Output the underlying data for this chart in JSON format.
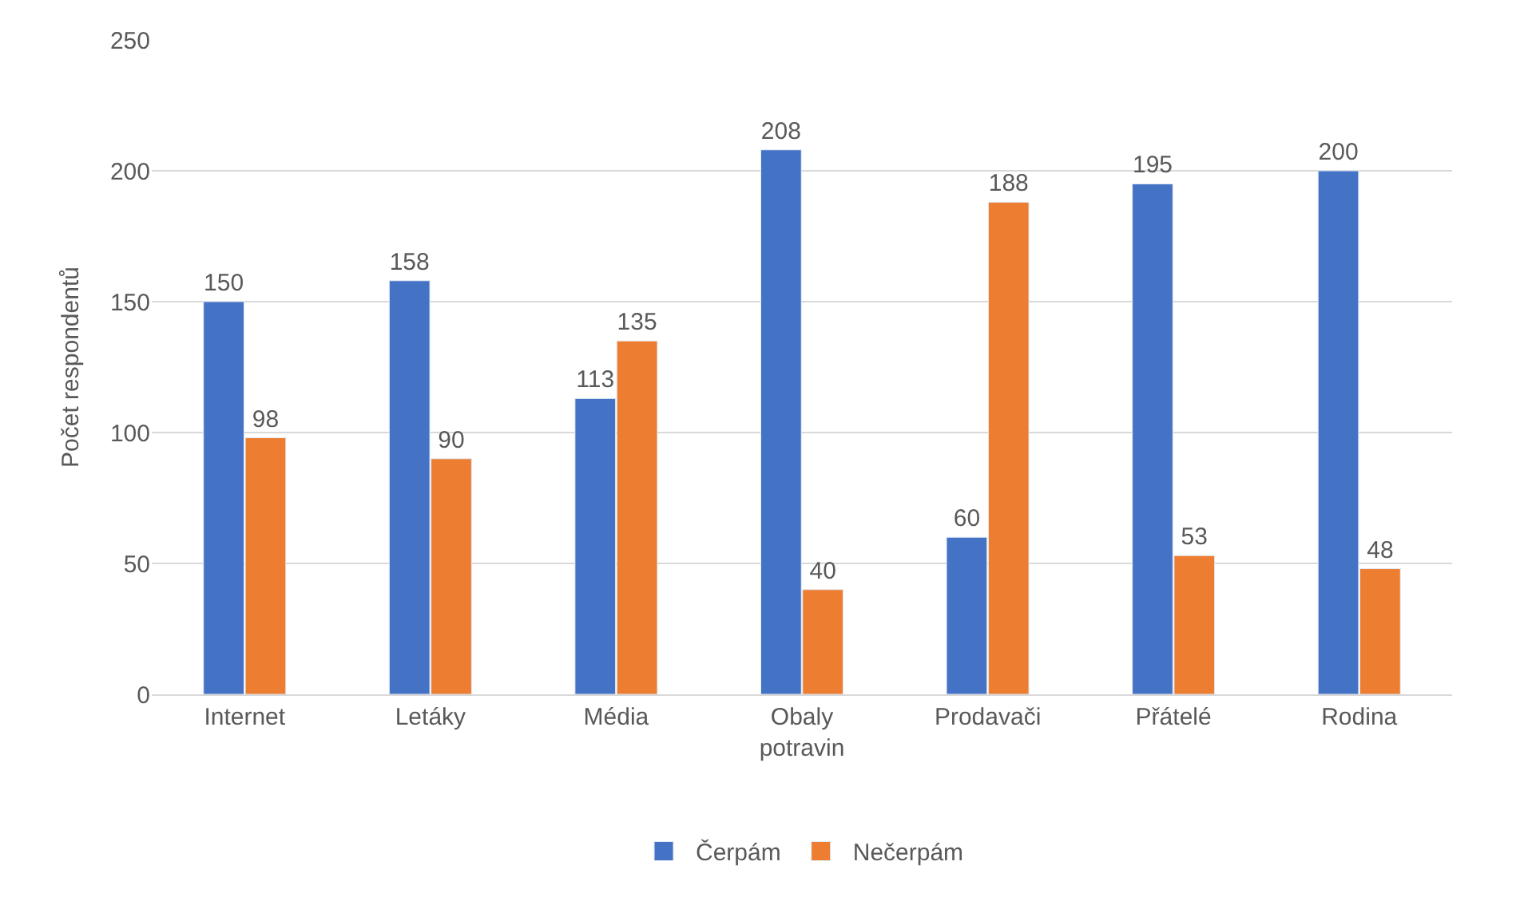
{
  "chart_data": {
    "type": "bar",
    "ylabel": "Počet respondentů",
    "categories": [
      "Internet",
      "Letáky",
      "Média",
      "Obaly potravin",
      "Prodavači",
      "Přátelé",
      "Rodina"
    ],
    "series": [
      {
        "name": "Čerpám",
        "color": "#4472c4",
        "values": [
          150,
          158,
          113,
          208,
          60,
          195,
          200
        ]
      },
      {
        "name": "Nečerpám",
        "color": "#ed7d31",
        "values": [
          98,
          90,
          135,
          40,
          188,
          53,
          48
        ]
      }
    ],
    "ylim": [
      0,
      250
    ],
    "yticks": [
      0,
      50,
      100,
      150,
      200,
      250
    ],
    "grid": "y",
    "legend": "bottom",
    "data_labels": true
  }
}
